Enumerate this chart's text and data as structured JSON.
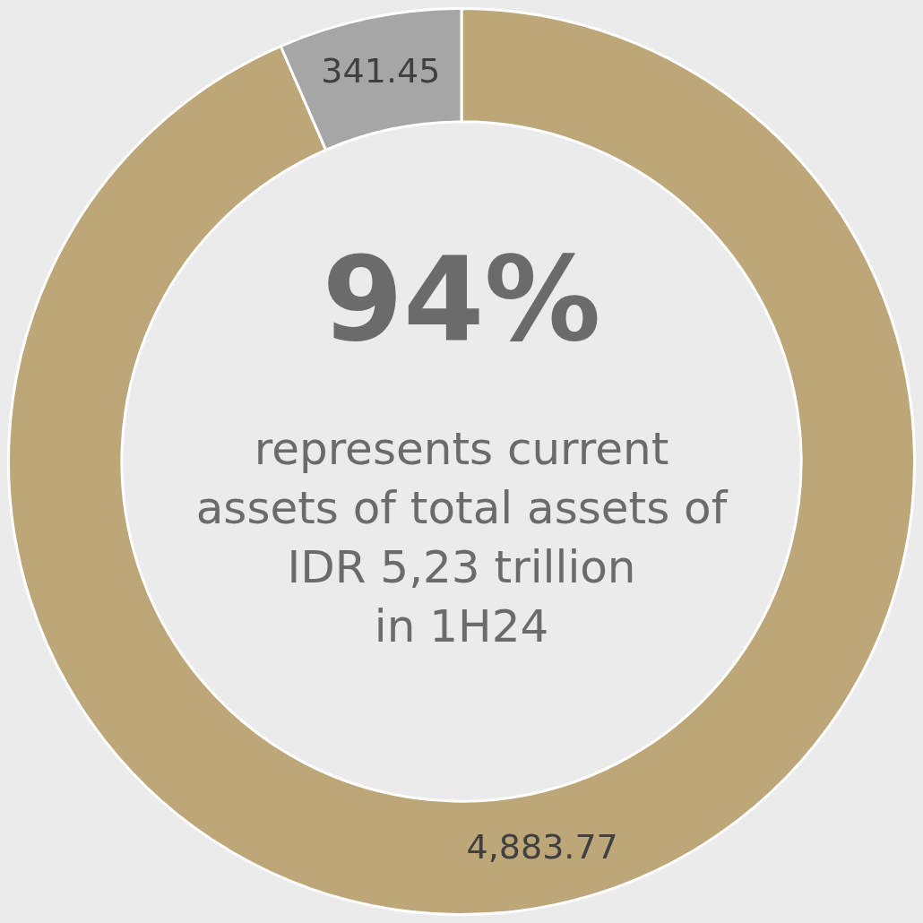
{
  "chart_data": {
    "type": "donut",
    "title": "94%",
    "subtitle": "represents current\nassets of total assets of\nIDR 5,23 trillion\nin 1H24",
    "categories": [
      null,
      null
    ],
    "values": [
      4883.77,
      341.45
    ],
    "colors": [
      "#bda678",
      "#a6a6a6"
    ],
    "value_labels": [
      "4,883.77",
      "341.45"
    ],
    "legend": false
  }
}
